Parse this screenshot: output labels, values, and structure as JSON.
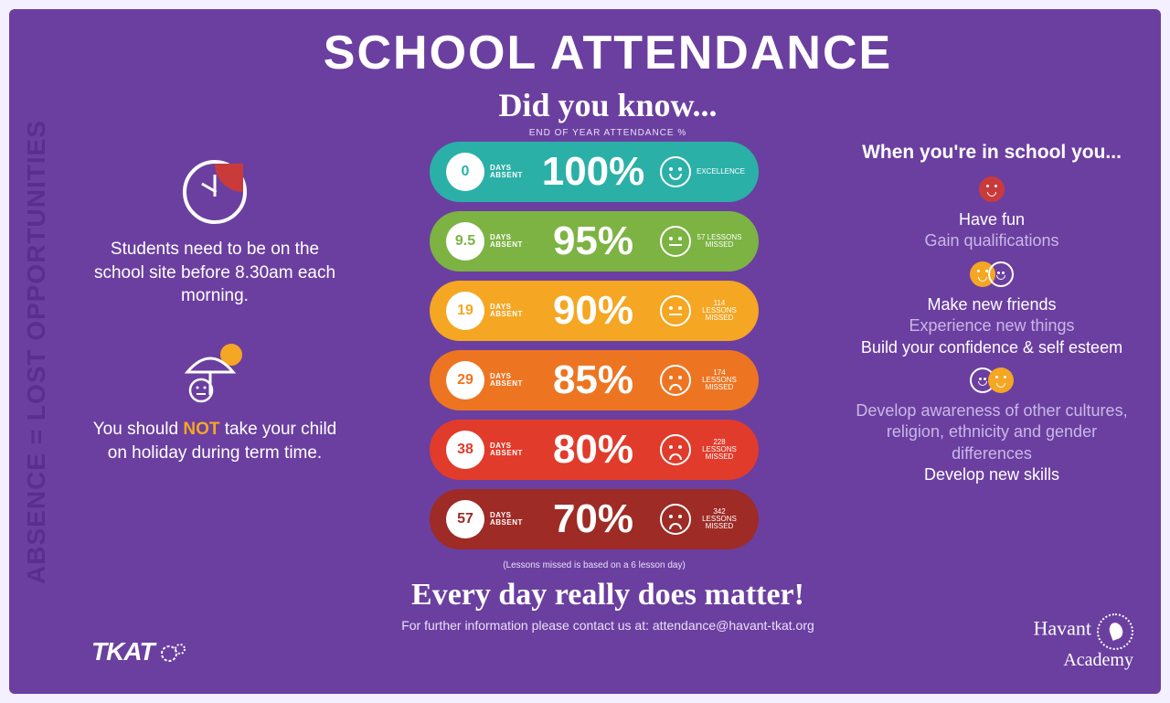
{
  "sidebar_text": "ABSENCE = LOST OPPORTUNITIES",
  "title": "SCHOOL ATTENDANCE",
  "subtitle": "Did you know...",
  "chart_label": "END OF YEAR ATTENDANCE %",
  "left": {
    "msg1": "Students need to be on the school site before 8.30am each morning.",
    "msg2_pre": "You should ",
    "msg2_hl": "NOT",
    "msg2_post": " take your child on holiday during term time."
  },
  "pills": [
    {
      "days": "0",
      "pct": "100%",
      "tag": "EXCELLENCE",
      "color": "#2bb0a8",
      "text_color": "#2bb0a8",
      "mouth": "smile"
    },
    {
      "days": "9.5",
      "pct": "95%",
      "tag": "57 LESSONS MISSED",
      "color": "#7cb342",
      "text_color": "#7cb342",
      "mouth": "flat"
    },
    {
      "days": "19",
      "pct": "90%",
      "tag": "114 LESSONS MISSED",
      "color": "#f5a623",
      "text_color": "#f5a623",
      "mouth": "flat"
    },
    {
      "days": "29",
      "pct": "85%",
      "tag": "174 LESSONS MISSED",
      "color": "#ed7522",
      "text_color": "#ed7522",
      "mouth": "sad"
    },
    {
      "days": "38",
      "pct": "80%",
      "tag": "228 LESSONS MISSED",
      "color": "#e13b2b",
      "text_color": "#e13b2b",
      "mouth": "sad"
    },
    {
      "days": "57",
      "pct": "70%",
      "tag": "342 LESSONS MISSED",
      "color": "#9e2b25",
      "text_color": "#9e2b25",
      "mouth": "sad"
    }
  ],
  "days_absent_label": "DAYS ABSENT",
  "footnote": "(Lessons missed is based on a 6 lesson day)",
  "right": {
    "head": "When you're in school you...",
    "b1a": "Have fun",
    "b1b": "Gain qualifications",
    "b2a": "Make new friends",
    "b2b": "Experience new things",
    "b2c": "Build your confidence & self esteem",
    "b3a": "Develop awareness of other cultures, religion, ethnicity and gender differences",
    "b3b": "Develop new skills"
  },
  "tagline": "Every day really does matter!",
  "contact": "For further information please contact us at: attendance@havant-tkat.org",
  "logo_left": "TKAT",
  "logo_right_1": "Havant",
  "logo_right_2": "Academy"
}
